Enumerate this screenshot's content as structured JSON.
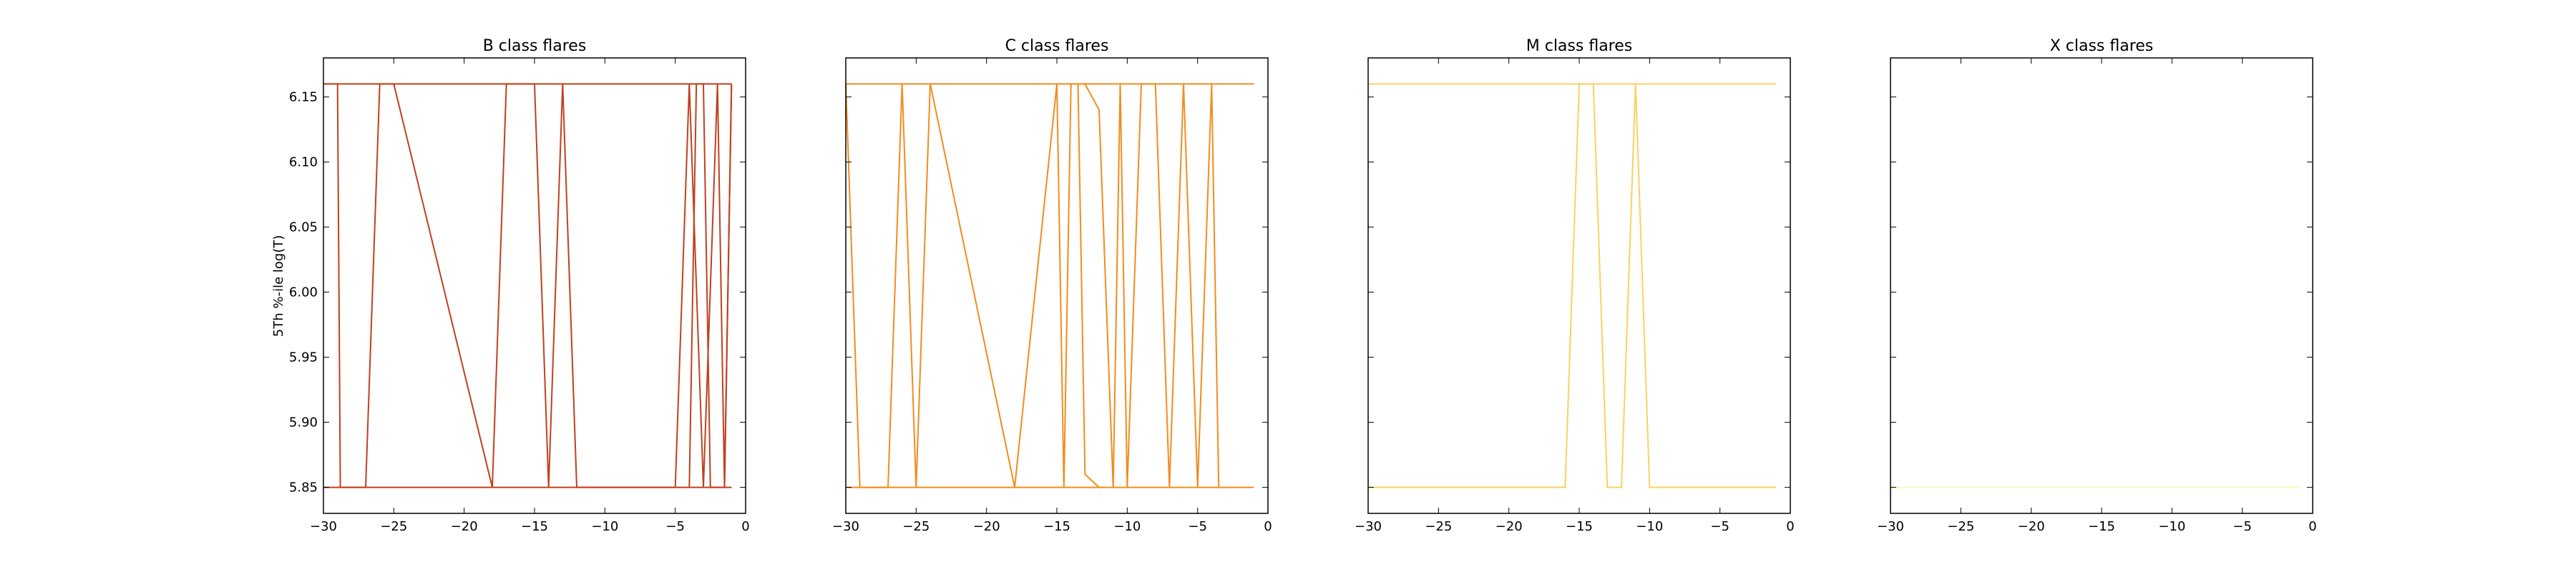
{
  "figure": {
    "ylabel": "5Th %-ile log(T)"
  },
  "chart_data": [
    {
      "type": "line",
      "title": "B class flares",
      "color": "#c0401f",
      "xlim": [
        -30,
        0
      ],
      "ylim": [
        5.83,
        6.18
      ],
      "xticks": [
        -30,
        -25,
        -20,
        -15,
        -10,
        -5,
        0
      ],
      "xtick_labels": [
        "−30",
        "−25",
        "−20",
        "−15",
        "−10",
        "−5",
        "0"
      ],
      "yticks": [
        5.85,
        5.9,
        5.95,
        6.0,
        6.05,
        6.1,
        6.15
      ],
      "ytick_labels": [
        "5.85",
        "5.90",
        "5.95",
        "6.00",
        "6.05",
        "6.10",
        "6.15"
      ],
      "show_yticklabels": true,
      "series": [
        {
          "x": [
            -30,
            -29,
            -28.8,
            -28,
            -27,
            -26,
            -25,
            -18,
            -17,
            -16,
            -15,
            -14,
            -13,
            -12,
            -5,
            -4,
            -3,
            -2,
            -1.5,
            -1
          ],
          "y": [
            6.16,
            6.16,
            5.85,
            5.85,
            5.85,
            6.16,
            6.16,
            5.85,
            6.16,
            6.16,
            6.16,
            5.85,
            6.16,
            5.85,
            5.85,
            6.16,
            5.85,
            6.16,
            5.85,
            6.16
          ]
        },
        {
          "x": [
            -4,
            -3.5,
            -3,
            -2.5,
            -1.5,
            -1
          ],
          "y": [
            5.85,
            6.16,
            6.16,
            5.85,
            5.85,
            6.16
          ]
        },
        {
          "x": [
            -30,
            -1
          ],
          "y": [
            6.16,
            6.16
          ]
        },
        {
          "x": [
            -30,
            -1
          ],
          "y": [
            5.85,
            5.85
          ]
        }
      ]
    },
    {
      "type": "line",
      "title": "C class flares",
      "color": "#f28c1e",
      "xlim": [
        -30,
        0
      ],
      "ylim": [
        5.83,
        6.18
      ],
      "xticks": [
        -30,
        -25,
        -20,
        -15,
        -10,
        -5,
        0
      ],
      "xtick_labels": [
        "−30",
        "−25",
        "−20",
        "−15",
        "−10",
        "−5",
        "0"
      ],
      "yticks": [
        5.85,
        5.9,
        5.95,
        6.0,
        6.05,
        6.1,
        6.15
      ],
      "ytick_labels": [
        "5.85",
        "5.90",
        "5.95",
        "6.00",
        "6.05",
        "6.10",
        "6.15"
      ],
      "show_yticklabels": false,
      "series": [
        {
          "x": [
            -30,
            -29,
            -27,
            -26,
            -25,
            -24,
            -18,
            -15,
            -14.5,
            -14,
            -13,
            -12,
            -11,
            -10.5,
            -10,
            -9,
            -8,
            -7,
            -6,
            -5,
            -4,
            -3.5
          ],
          "y": [
            6.16,
            5.85,
            5.85,
            6.16,
            5.85,
            6.16,
            5.85,
            6.16,
            5.85,
            6.16,
            6.16,
            6.14,
            5.85,
            6.16,
            5.85,
            6.16,
            6.16,
            5.85,
            6.16,
            5.85,
            6.16,
            5.85
          ]
        },
        {
          "x": [
            -13.5,
            -13,
            -12
          ],
          "y": [
            6.16,
            5.86,
            5.85
          ]
        },
        {
          "x": [
            -30,
            -1
          ],
          "y": [
            6.16,
            6.16
          ]
        },
        {
          "x": [
            -30,
            -1
          ],
          "y": [
            5.85,
            5.85
          ]
        }
      ]
    },
    {
      "type": "line",
      "title": "M class flares",
      "color": "#fdd060",
      "xlim": [
        -30,
        0
      ],
      "ylim": [
        5.83,
        6.18
      ],
      "xticks": [
        -30,
        -25,
        -20,
        -15,
        -10,
        -5,
        0
      ],
      "xtick_labels": [
        "−30",
        "−25",
        "−20",
        "−15",
        "−10",
        "−5",
        "0"
      ],
      "yticks": [
        5.85,
        5.9,
        5.95,
        6.0,
        6.05,
        6.1,
        6.15
      ],
      "ytick_labels": [
        "5.85",
        "5.90",
        "5.95",
        "6.00",
        "6.05",
        "6.10",
        "6.15"
      ],
      "show_yticklabels": false,
      "series": [
        {
          "x": [
            -30,
            -16,
            -15,
            -14,
            -13,
            -12,
            -11,
            -10,
            -1
          ],
          "y": [
            5.85,
            5.85,
            6.16,
            6.16,
            5.85,
            5.85,
            6.16,
            5.85,
            5.85
          ]
        },
        {
          "x": [
            -30,
            -1
          ],
          "y": [
            6.16,
            6.16
          ]
        }
      ]
    },
    {
      "type": "line",
      "title": "X class flares",
      "color": "#fff5b8",
      "xlim": [
        -30,
        0
      ],
      "ylim": [
        5.83,
        6.18
      ],
      "xticks": [
        -30,
        -25,
        -20,
        -15,
        -10,
        -5,
        0
      ],
      "xtick_labels": [
        "−30",
        "−25",
        "−20",
        "−15",
        "−10",
        "−5",
        "0"
      ],
      "yticks": [
        5.85,
        5.9,
        5.95,
        6.0,
        6.05,
        6.1,
        6.15
      ],
      "ytick_labels": [
        "5.85",
        "5.90",
        "5.95",
        "6.00",
        "6.05",
        "6.10",
        "6.15"
      ],
      "show_yticklabels": false,
      "series": [
        {
          "x": [
            -30,
            -1
          ],
          "y": [
            5.85,
            5.85
          ]
        }
      ]
    }
  ]
}
